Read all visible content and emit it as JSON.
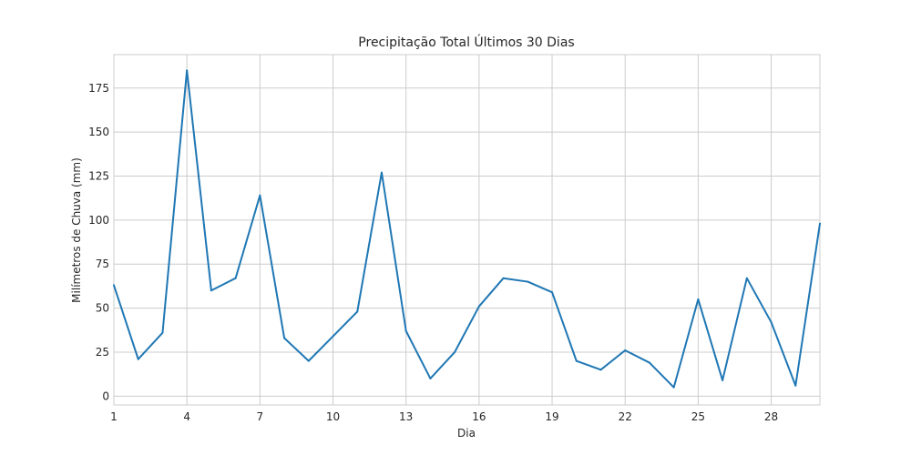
{
  "chart_data": {
    "type": "line",
    "title": "Precipitação Total Últimos 30 Dias",
    "xlabel": "Dia",
    "ylabel": "Milímetros de Chuva (mm)",
    "xlim": [
      1,
      30
    ],
    "ylim": [
      -5,
      194
    ],
    "xticks": [
      1,
      4,
      7,
      10,
      13,
      16,
      19,
      22,
      25,
      28
    ],
    "yticks": [
      0,
      25,
      50,
      75,
      100,
      125,
      150,
      175
    ],
    "grid": true,
    "x": [
      1,
      2,
      3,
      4,
      5,
      6,
      7,
      8,
      9,
      10,
      11,
      12,
      13,
      14,
      15,
      16,
      17,
      18,
      19,
      20,
      21,
      22,
      23,
      24,
      25,
      26,
      27,
      28,
      29,
      30
    ],
    "series": [
      {
        "color": "#1f77b4",
        "values": [
          63,
          21,
          36,
          185,
          60,
          67,
          114,
          33,
          20,
          34,
          48,
          127,
          37,
          10,
          25,
          51,
          67,
          65,
          59,
          20,
          15,
          26,
          19,
          5,
          55,
          9,
          67,
          42,
          6,
          98
        ]
      }
    ]
  }
}
